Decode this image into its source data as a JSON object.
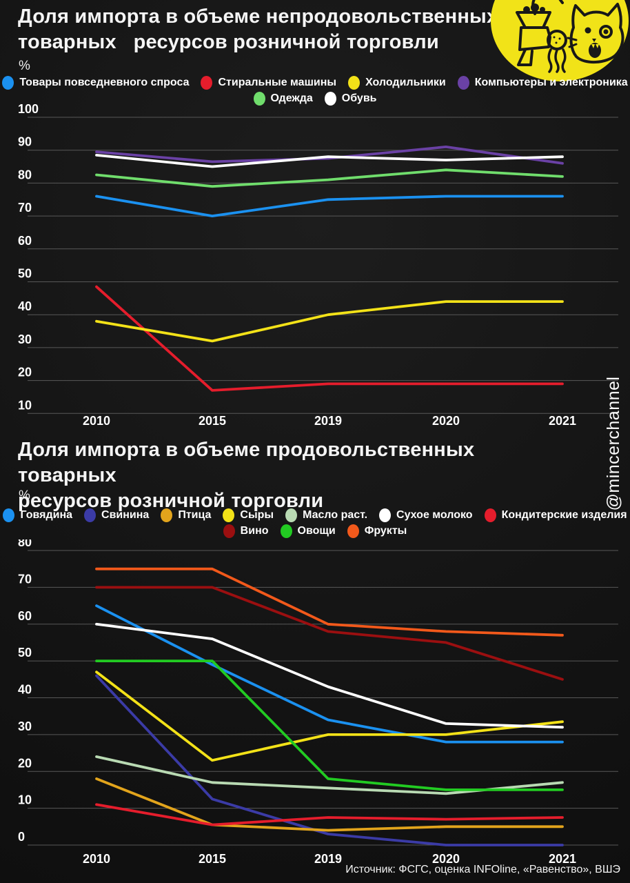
{
  "page": {
    "watermark": "@mincerchannel",
    "source": "Источник: ФСГС, оценка INFOline, «Равенство», ВШЭ",
    "background": "#141414",
    "grid_color": "#585858",
    "logo_color": "#f1e318"
  },
  "chart_data": [
    {
      "type": "line",
      "title": "Доля импорта в объеме непродовольственных\nтоварных   ресурсов розничной торговли",
      "unit_label": "%",
      "xlabel": "",
      "ylabel": "%",
      "categories": [
        "2010",
        "2015",
        "2019",
        "2020",
        "2021"
      ],
      "ylim": [
        10,
        100
      ],
      "yticks": [
        100,
        90,
        80,
        70,
        60,
        50,
        40,
        30,
        20,
        10
      ],
      "grid": true,
      "legend_position": "top",
      "legend_rows": [
        4,
        2
      ],
      "series": [
        {
          "name": "Товары повседневного спроса",
          "color": "#1b91f0",
          "values": [
            76,
            70,
            75,
            76,
            76
          ]
        },
        {
          "name": "Стиральные машины",
          "color": "#e51d2c",
          "values": [
            48.5,
            17,
            19,
            19,
            19
          ]
        },
        {
          "name": "Холодильники",
          "color": "#f3e218",
          "values": [
            38,
            32,
            40,
            44,
            44
          ]
        },
        {
          "name": "Компьютеры и электроника",
          "color": "#6a41a5",
          "values": [
            89.5,
            86.5,
            87.5,
            91,
            86
          ]
        },
        {
          "name": "Одежда",
          "color": "#70dd6c",
          "values": [
            82.5,
            79,
            81,
            84,
            82
          ]
        },
        {
          "name": "Обувь",
          "color": "#ffffff",
          "values": [
            88.5,
            85,
            88,
            87,
            88
          ]
        }
      ]
    },
    {
      "type": "line",
      "title": "Доля импорта в объеме продовольственных товарных\nресурсов розничной торговли",
      "unit_label": "%",
      "xlabel": "",
      "ylabel": "%",
      "categories": [
        "2010",
        "2015",
        "2019",
        "2020",
        "2021"
      ],
      "ylim": [
        0,
        80
      ],
      "yticks": [
        80,
        70,
        60,
        50,
        40,
        30,
        20,
        10,
        0
      ],
      "grid": true,
      "legend_position": "top",
      "legend_rows": [
        7,
        3
      ],
      "series": [
        {
          "name": "Говядина",
          "color": "#1b91f0",
          "values": [
            65,
            49,
            34,
            28,
            28
          ]
        },
        {
          "name": "Свинина",
          "color": "#3b3ba6",
          "values": [
            46,
            12.5,
            3,
            0,
            0
          ]
        },
        {
          "name": "Птица",
          "color": "#e2a41c",
          "values": [
            18,
            5.5,
            4,
            5,
            5
          ]
        },
        {
          "name": "Сыры",
          "color": "#f3e218",
          "values": [
            47,
            23,
            30,
            30,
            33.5
          ]
        },
        {
          "name": "Масло раст.",
          "color": "#b9dab3",
          "values": [
            24,
            17,
            15.5,
            14,
            17
          ]
        },
        {
          "name": "Сухое молоко",
          "color": "#ffffff",
          "values": [
            60,
            56,
            43,
            33,
            32
          ]
        },
        {
          "name": "Кондитерские изделия",
          "color": "#e51d2c",
          "values": [
            11,
            5.5,
            7.5,
            7,
            7.5
          ]
        },
        {
          "name": "Вино",
          "color": "#9b0f10",
          "values": [
            70,
            70,
            58,
            55,
            45
          ]
        },
        {
          "name": "Овощи",
          "color": "#22cb22",
          "values": [
            50,
            50,
            18,
            15,
            15
          ]
        },
        {
          "name": "Фрукты",
          "color": "#f2591b",
          "values": [
            75,
            75,
            60,
            58,
            57
          ]
        }
      ]
    }
  ]
}
